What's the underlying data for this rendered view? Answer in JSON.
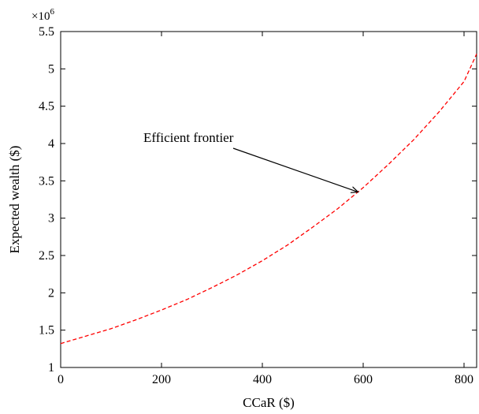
{
  "chart_data": {
    "type": "line",
    "title": "",
    "xlabel": "CCaR ($)",
    "ylabel": "Expected wealth ($)",
    "y_multiplier_label": "×10⁶",
    "y_multiplier_base": "×10",
    "y_multiplier_exp": "6",
    "xlim": [
      0,
      825
    ],
    "ylim": [
      1,
      5.5
    ],
    "x_ticks": [
      0,
      200,
      400,
      600,
      800
    ],
    "x_tick_labels": [
      "0",
      "200",
      "400",
      "600",
      "800"
    ],
    "y_ticks": [
      1,
      1.5,
      2,
      2.5,
      3,
      3.5,
      4,
      4.5,
      5,
      5.5
    ],
    "y_tick_labels": [
      "1",
      "1.5",
      "2",
      "2.5",
      "3",
      "3.5",
      "4",
      "4.5",
      "5",
      "5.5"
    ],
    "grid": false,
    "series": [
      {
        "color": "#ff0000",
        "line_style": "dashed",
        "x": [
          0,
          50,
          100,
          150,
          200,
          250,
          300,
          350,
          400,
          450,
          500,
          550,
          600,
          650,
          700,
          750,
          800,
          825
        ],
        "y": [
          1.32,
          1.42,
          1.52,
          1.64,
          1.77,
          1.91,
          2.07,
          2.24,
          2.43,
          2.64,
          2.88,
          3.13,
          3.41,
          3.72,
          4.05,
          4.42,
          4.83,
          5.2
        ]
      }
    ],
    "annotations": [
      {
        "text": "Efficient frontier",
        "arrow_to": {
          "x": 590,
          "y": 3.35
        }
      }
    ]
  }
}
